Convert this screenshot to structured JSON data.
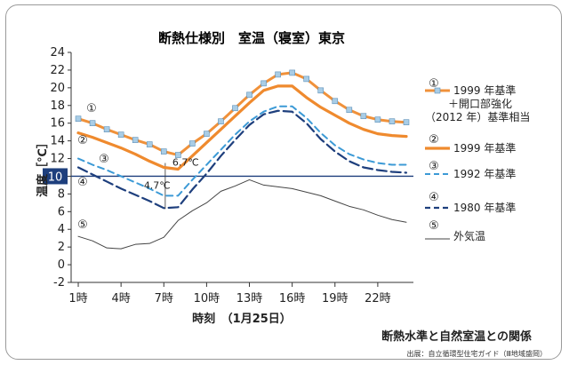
{
  "chart_data": {
    "type": "line",
    "title": "断熱仕様別　室温（寝室）東京",
    "subtitle": "断熱水準と自然室温との関係",
    "source": "出展：自立循環型住宅ガイド（Ⅲ地域盛岡）",
    "xlabel": "時刻　（1月25日）",
    "ylabel": "温度［℃］",
    "ylim": [
      -2,
      24
    ],
    "yticks": [
      -2,
      0,
      2,
      4,
      6,
      8,
      10,
      12,
      14,
      16,
      18,
      20,
      22,
      24
    ],
    "highlight_y": 10,
    "x": [
      1,
      2,
      3,
      4,
      5,
      6,
      7,
      8,
      9,
      10,
      11,
      12,
      13,
      14,
      15,
      16,
      17,
      18,
      19,
      20,
      21,
      22,
      23,
      24
    ],
    "xticks": [
      1,
      4,
      7,
      10,
      13,
      16,
      19,
      22
    ],
    "xtick_labels": [
      "1時",
      "4時",
      "7時",
      "10時",
      "13時",
      "16時",
      "19時",
      "22時"
    ],
    "series": [
      {
        "marker": "①",
        "name": "1999 年基準\n＋開口部強化\n（2012 年）基準相当",
        "style": "orange-with-square-markers",
        "color": "#f0913a",
        "values": [
          16.5,
          16.0,
          15.3,
          14.7,
          14.1,
          13.6,
          12.8,
          12.4,
          13.7,
          14.8,
          16.2,
          17.7,
          19.2,
          20.5,
          21.5,
          21.7,
          21.0,
          19.7,
          18.5,
          17.5,
          16.8,
          16.4,
          16.2,
          16.1
        ]
      },
      {
        "marker": "②",
        "name": "1999 年基準",
        "style": "orange-thick",
        "color": "#ef8a2e",
        "values": [
          14.9,
          14.4,
          13.8,
          13.2,
          12.5,
          11.7,
          11.0,
          10.8,
          12.3,
          13.8,
          15.3,
          16.8,
          18.3,
          19.7,
          20.2,
          20.2,
          18.9,
          17.8,
          16.9,
          16.0,
          15.3,
          14.8,
          14.6,
          14.5
        ]
      },
      {
        "marker": "③",
        "name": "1992 年基準",
        "style": "light-blue-dashed",
        "color": "#3c9ad6",
        "values": [
          12.0,
          11.3,
          10.7,
          10.0,
          9.3,
          8.6,
          7.8,
          7.8,
          9.6,
          11.3,
          13.0,
          14.7,
          16.2,
          17.3,
          17.9,
          17.9,
          16.6,
          14.9,
          13.5,
          12.5,
          11.9,
          11.5,
          11.3,
          11.3
        ]
      },
      {
        "marker": "④",
        "name": "1980 年基準",
        "style": "navy-dashed-long",
        "color": "#1e3f7d",
        "values": [
          11.0,
          10.2,
          9.4,
          8.6,
          7.9,
          7.2,
          6.4,
          6.5,
          8.5,
          10.3,
          12.3,
          14.1,
          15.8,
          17.0,
          17.4,
          17.3,
          16.0,
          14.2,
          12.8,
          11.7,
          11.0,
          10.7,
          10.5,
          10.4
        ]
      },
      {
        "marker": "⑤",
        "name": "外気温",
        "style": "thin-gray",
        "color": "#444444",
        "values": [
          3.2,
          2.7,
          1.9,
          1.8,
          2.3,
          2.4,
          3.1,
          5.0,
          6.1,
          7.0,
          8.3,
          8.9,
          9.6,
          9.0,
          8.8,
          8.6,
          8.2,
          7.8,
          7.2,
          6.6,
          6.2,
          5.6,
          5.1,
          4.8
        ]
      }
    ],
    "annotations": [
      {
        "text": "6.7℃",
        "x": 7.6,
        "y": 11.2
      },
      {
        "text": "4.7℃",
        "x": 5.6,
        "y": 8.6
      }
    ],
    "legend_position": "right",
    "grid": false
  }
}
